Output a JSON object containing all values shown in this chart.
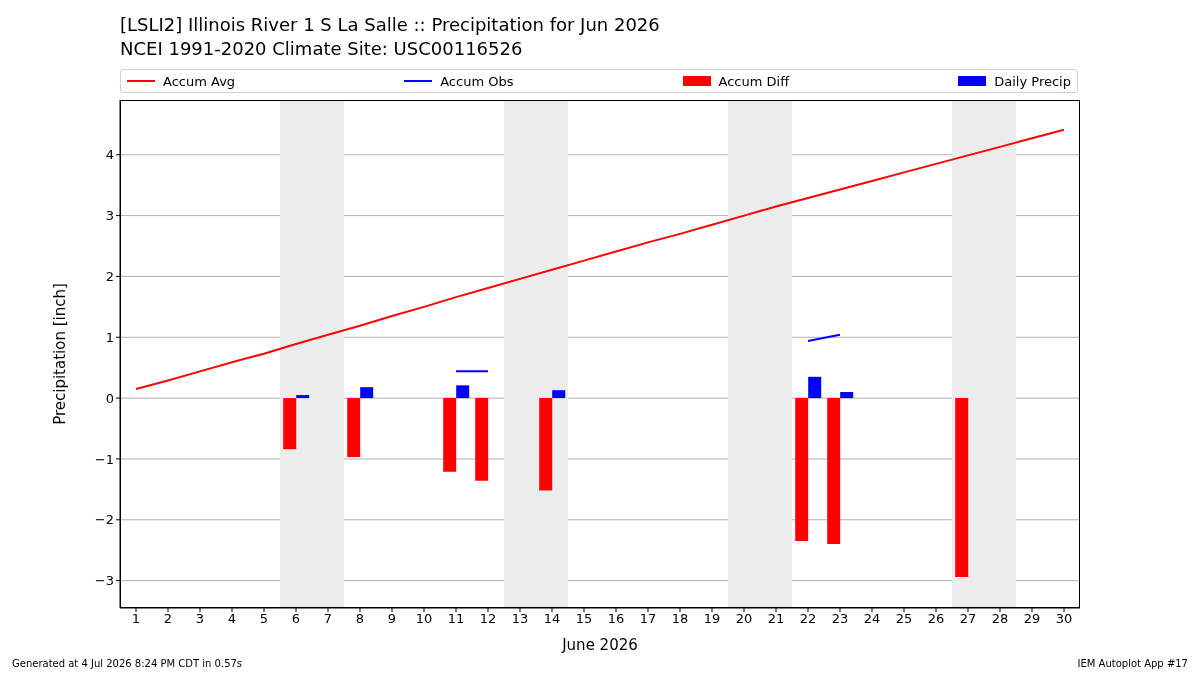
{
  "chart_data": {
    "type": "bar",
    "title": "[LSLI2] Illinois River 1 S La Salle :: Precipitation for Jun 2026",
    "subtitle": "NCEI 1991-2020 Climate Site: USC00116526",
    "xlabel": "June 2026",
    "ylabel": "Precipitation [inch]",
    "x": [
      1,
      2,
      3,
      4,
      5,
      6,
      7,
      8,
      9,
      10,
      11,
      12,
      13,
      14,
      15,
      16,
      17,
      18,
      19,
      20,
      21,
      22,
      23,
      24,
      25,
      26,
      27,
      28,
      29,
      30
    ],
    "series": [
      {
        "name": "Accum Avg",
        "type": "line",
        "color": "#ff0000",
        "values": [
          0.15,
          0.29,
          0.44,
          0.59,
          0.73,
          0.89,
          1.04,
          1.19,
          1.35,
          1.5,
          1.66,
          1.81,
          1.96,
          2.11,
          2.26,
          2.41,
          2.56,
          2.7,
          2.85,
          3.0,
          3.15,
          3.29,
          3.43,
          3.57,
          3.71,
          3.85,
          3.99,
          4.13,
          4.27,
          4.41
        ]
      },
      {
        "name": "Accum Obs",
        "type": "line",
        "color": "#0000ff",
        "values": [
          null,
          null,
          null,
          null,
          null,
          null,
          null,
          null,
          null,
          null,
          0.44,
          0.44,
          null,
          null,
          null,
          null,
          null,
          null,
          null,
          null,
          null,
          0.94,
          1.04,
          null,
          null,
          null,
          null,
          null,
          null,
          null
        ]
      },
      {
        "name": "Accum Diff",
        "color": "#ff0000",
        "values": [
          null,
          null,
          null,
          null,
          null,
          -0.84,
          null,
          -0.97,
          null,
          null,
          -1.21,
          -1.36,
          null,
          -1.52,
          null,
          null,
          null,
          null,
          null,
          null,
          null,
          -2.35,
          -2.4,
          null,
          null,
          null,
          -2.94,
          null,
          null,
          null
        ]
      },
      {
        "name": "Daily Precip",
        "color": "#0000ff",
        "values": [
          null,
          null,
          null,
          null,
          null,
          0.05,
          null,
          0.18,
          null,
          null,
          0.21,
          null,
          null,
          0.13,
          null,
          null,
          null,
          null,
          null,
          null,
          null,
          0.35,
          0.1,
          null,
          null,
          null,
          null,
          null,
          null,
          null
        ]
      }
    ],
    "xlim": [
      0.5,
      30.5
    ],
    "xticks": [
      1,
      2,
      3,
      4,
      5,
      6,
      7,
      8,
      9,
      10,
      11,
      12,
      13,
      14,
      15,
      16,
      17,
      18,
      19,
      20,
      21,
      22,
      23,
      24,
      25,
      26,
      27,
      28,
      29,
      30
    ],
    "ylim": [
      -3.45,
      4.9
    ],
    "yticks": [
      {
        "value": -3,
        "label": "−3"
      },
      {
        "value": -2,
        "label": "−2"
      },
      {
        "value": -1,
        "label": "−1"
      },
      0,
      1,
      2,
      3,
      4
    ],
    "bands": [
      {
        "axis": "x",
        "from": 5.5,
        "to": 7.5,
        "color": "#ececec"
      },
      {
        "axis": "x",
        "from": 12.5,
        "to": 14.5,
        "color": "#ececec"
      },
      {
        "axis": "x",
        "from": 19.5,
        "to": 21.5,
        "color": "#ececec"
      },
      {
        "axis": "x",
        "from": 26.5,
        "to": 28.5,
        "color": "#ececec"
      }
    ],
    "grid": "y",
    "legend": "top",
    "annotations": [
      "Generated at 4 Jul 2026 8:24 PM CDT in 0.57s",
      "IEM Autoplot App #17"
    ]
  }
}
